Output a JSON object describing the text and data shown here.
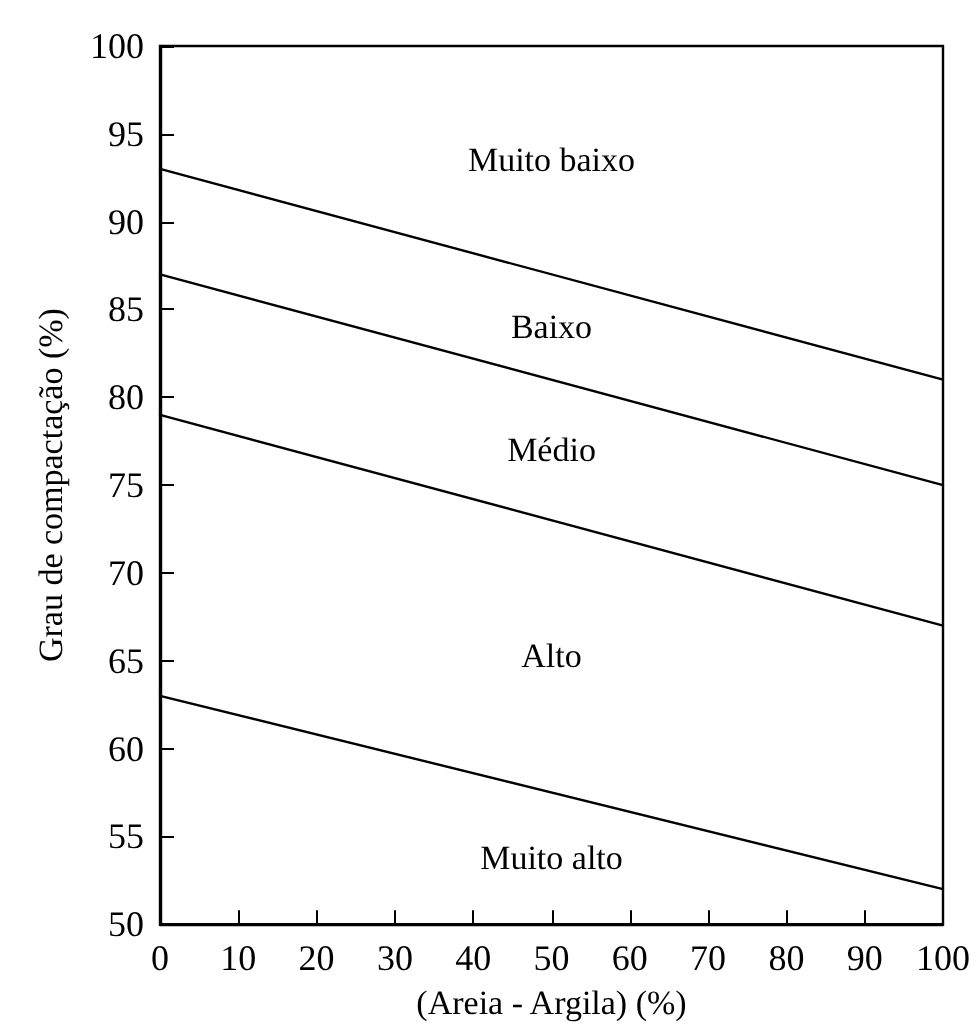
{
  "chart_data": {
    "type": "line",
    "xlabel": "(Areia - Argila) (%)",
    "ylabel": "Grau de compactação (%)",
    "x": [
      0,
      100
    ],
    "series": [
      {
        "color": "#000000",
        "values": [
          93,
          81
        ]
      },
      {
        "color": "#000000",
        "values": [
          87,
          75
        ]
      },
      {
        "color": "#000000",
        "values": [
          79,
          67
        ]
      },
      {
        "color": "#000000",
        "values": [
          63,
          52
        ]
      }
    ],
    "xlim": [
      0,
      100
    ],
    "xticks": [
      0,
      10,
      20,
      30,
      40,
      50,
      60,
      70,
      80,
      90,
      100
    ],
    "ylim": [
      50,
      100
    ],
    "yticks": [
      50,
      55,
      60,
      65,
      70,
      75,
      80,
      85,
      90,
      95,
      100
    ],
    "annotations": [
      "Muito baixo",
      "Baixo",
      "Médio",
      "Alto",
      "Muito alto"
    ],
    "grid": false,
    "marker": "none",
    "line_style": "solid"
  }
}
